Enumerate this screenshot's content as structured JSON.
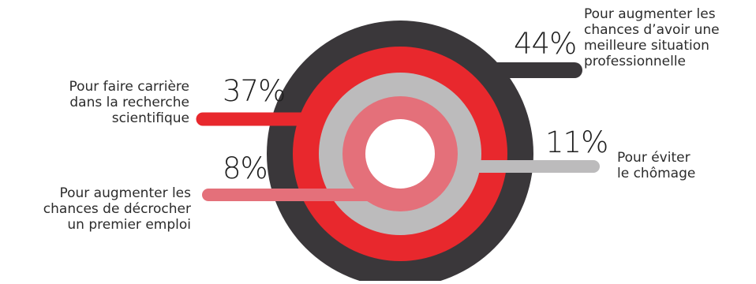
{
  "chart_data": {
    "type": "pie",
    "variant": "concentric-rings",
    "title": "",
    "series": [
      {
        "value": 44,
        "value_label": "44%",
        "label_lines": [
          "Pour augmenter les",
          "chances d’avoir une",
          "meilleure situation",
          "professionnelle"
        ],
        "color": "#3a373a"
      },
      {
        "value": 37,
        "value_label": "37%",
        "label_lines": [
          "Pour faire carrière",
          "dans la recherche",
          "scientifique"
        ],
        "color": "#e8282d"
      },
      {
        "value": 11,
        "value_label": "11%",
        "label_lines": [
          "Pour éviter",
          "le chômage"
        ],
        "color": "#bcbbbc"
      },
      {
        "value": 8,
        "value_label": "8%",
        "label_lines": [
          "Pour augmenter les",
          "chances de décrocher",
          "un premier emploi"
        ],
        "color": "#e4707a"
      }
    ],
    "legend": "none",
    "grid": false
  }
}
